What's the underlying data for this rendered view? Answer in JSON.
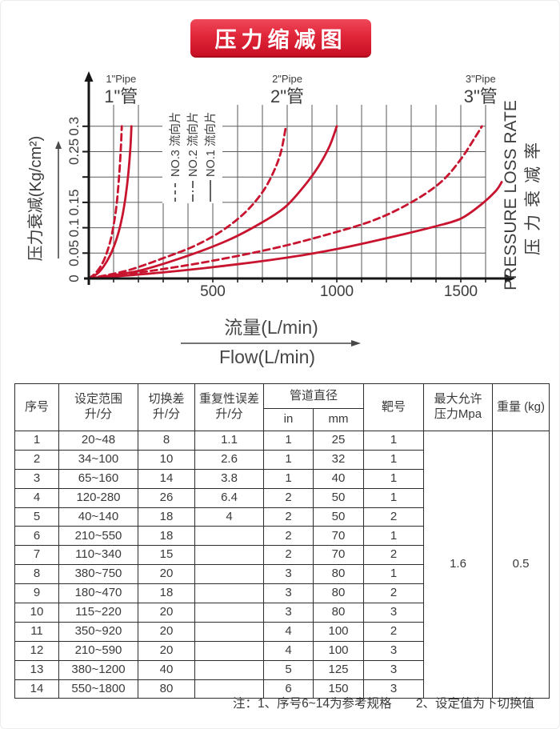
{
  "title": {
    "text": "压力缩减图",
    "bg_top": "#f0485a",
    "bg_bottom": "#c90f23",
    "text_color": "#ffffff"
  },
  "chart_data": {
    "type": "line",
    "title": "压力缩减图",
    "xlabel_cn": "流量(L/min)",
    "xlabel_en": "Flow(L/min)",
    "ylabel_left": "压力衰减(Kg/cm²)",
    "ylabel_right_en": "PRESSURE LOSS RATE",
    "ylabel_right_cn": "压力衰减率",
    "xlim": [
      0,
      1660
    ],
    "ylim": [
      0,
      0.3
    ],
    "x_ticks": [
      500,
      1000,
      1500
    ],
    "y_ticks": [
      {
        "value": 0,
        "label": "0"
      },
      {
        "value": 0.05,
        "label": "0.05"
      },
      {
        "value": 0.1,
        "label": "0.1"
      },
      {
        "value": 0.15,
        "label": "0.15"
      },
      {
        "value": 0.2,
        "label": ""
      },
      {
        "value": 0.25,
        "label": "0.25"
      },
      {
        "value": 0.3,
        "label": "0.3"
      }
    ],
    "grid": {
      "on": true,
      "x_step": 100,
      "x_max": 1600,
      "y_step": 0.05,
      "color": "#5a5a5a"
    },
    "series_color": "#c8142f",
    "pipe_annotations": [
      {
        "en": "1\"Pipe",
        "cn": "1\"管",
        "x": 130
      },
      {
        "en": "2\"Pipe",
        "cn": "2\"管",
        "x": 800
      },
      {
        "en": "3\"Pipe",
        "cn": "3\"管",
        "x": 1580
      }
    ],
    "legend": [
      {
        "label": "NO.3 流向片",
        "style": "dashed"
      },
      {
        "label": "NO.2 流向片",
        "style": "dash-dot"
      },
      {
        "label": "NO.1 流向片",
        "style": "solid"
      }
    ],
    "series": [
      {
        "name": "1in-dashed",
        "style": "dashed",
        "points": [
          [
            0,
            0
          ],
          [
            30,
            0.012
          ],
          [
            60,
            0.035
          ],
          [
            85,
            0.07
          ],
          [
            100,
            0.105
          ],
          [
            112,
            0.145
          ],
          [
            122,
            0.2
          ],
          [
            129,
            0.255
          ],
          [
            133,
            0.3
          ]
        ]
      },
      {
        "name": "1in-solid",
        "style": "solid",
        "points": [
          [
            0,
            0
          ],
          [
            40,
            0.012
          ],
          [
            80,
            0.04
          ],
          [
            110,
            0.075
          ],
          [
            132,
            0.115
          ],
          [
            148,
            0.16
          ],
          [
            160,
            0.21
          ],
          [
            168,
            0.26
          ],
          [
            172,
            0.3
          ]
        ]
      },
      {
        "name": "2in-dashed",
        "style": "dashed",
        "points": [
          [
            0,
            0
          ],
          [
            150,
            0.015
          ],
          [
            300,
            0.04
          ],
          [
            430,
            0.065
          ],
          [
            540,
            0.095
          ],
          [
            630,
            0.13
          ],
          [
            700,
            0.17
          ],
          [
            745,
            0.21
          ],
          [
            775,
            0.25
          ],
          [
            795,
            0.3
          ]
        ]
      },
      {
        "name": "2in-solid",
        "style": "solid",
        "points": [
          [
            0,
            0
          ],
          [
            200,
            0.015
          ],
          [
            400,
            0.045
          ],
          [
            560,
            0.075
          ],
          [
            690,
            0.108
          ],
          [
            790,
            0.14
          ],
          [
            865,
            0.18
          ],
          [
            925,
            0.22
          ],
          [
            970,
            0.26
          ],
          [
            1000,
            0.3
          ]
        ]
      },
      {
        "name": "3in-dashed",
        "style": "dashed",
        "points": [
          [
            0,
            0
          ],
          [
            250,
            0.015
          ],
          [
            500,
            0.035
          ],
          [
            750,
            0.06
          ],
          [
            950,
            0.085
          ],
          [
            1150,
            0.115
          ],
          [
            1300,
            0.15
          ],
          [
            1420,
            0.19
          ],
          [
            1500,
            0.235
          ],
          [
            1560,
            0.28
          ],
          [
            1585,
            0.3
          ]
        ]
      },
      {
        "name": "3in-solid",
        "style": "solid",
        "points": [
          [
            0,
            0
          ],
          [
            300,
            0.012
          ],
          [
            600,
            0.028
          ],
          [
            850,
            0.045
          ],
          [
            1050,
            0.063
          ],
          [
            1250,
            0.085
          ],
          [
            1400,
            0.103
          ],
          [
            1500,
            0.118
          ],
          [
            1580,
            0.145
          ],
          [
            1640,
            0.172
          ],
          [
            1665,
            0.19
          ]
        ]
      }
    ]
  },
  "table": {
    "headers": {
      "no": "序号",
      "range_l1": "设定范围",
      "range_l2": "升/分",
      "diff_l1": "切换差",
      "diff_l2": "升/分",
      "rep_l1": "重复性误差",
      "rep_l2": "升/分",
      "pipe": "管道直径",
      "pipe_in": "in",
      "pipe_mm": "mm",
      "target": "靶号",
      "pressure_l1": "最大允许",
      "pressure_l2": "压力Mpa",
      "weight": "重量 (kg)"
    },
    "rows": [
      [
        "1",
        "20~48",
        "8",
        "1.1",
        "1",
        "25",
        "1"
      ],
      [
        "2",
        "34~100",
        "10",
        "2.6",
        "1",
        "32",
        "1"
      ],
      [
        "3",
        "65~160",
        "14",
        "3.8",
        "1",
        "40",
        "1"
      ],
      [
        "4",
        "120-280",
        "26",
        "6.4",
        "2",
        "50",
        "1"
      ],
      [
        "5",
        "40~140",
        "18",
        "4",
        "2",
        "50",
        "2"
      ],
      [
        "6",
        "210~550",
        "18",
        "",
        "2",
        "70",
        "1"
      ],
      [
        "7",
        "110~340",
        "15",
        "",
        "2",
        "70",
        "2"
      ],
      [
        "8",
        "380~750",
        "20",
        "",
        "3",
        "80",
        "1"
      ],
      [
        "9",
        "180~470",
        "18",
        "",
        "3",
        "80",
        "2"
      ],
      [
        "10",
        "115~220",
        "20",
        "",
        "3",
        "80",
        "3"
      ],
      [
        "11",
        "350~920",
        "20",
        "",
        "4",
        "100",
        "2"
      ],
      [
        "12",
        "210~590",
        "20",
        "",
        "4",
        "100",
        "3"
      ],
      [
        "13",
        "380~1200",
        "40",
        "",
        "5",
        "125",
        "3"
      ],
      [
        "14",
        "550~1800",
        "80",
        "",
        "6",
        "150",
        "3"
      ]
    ],
    "merged": {
      "max_pressure": "1.6",
      "weight": "0.5"
    }
  },
  "note": {
    "part1": "注：1、序号6~14为参考规格",
    "part2": "2、设定值为下切换值"
  }
}
